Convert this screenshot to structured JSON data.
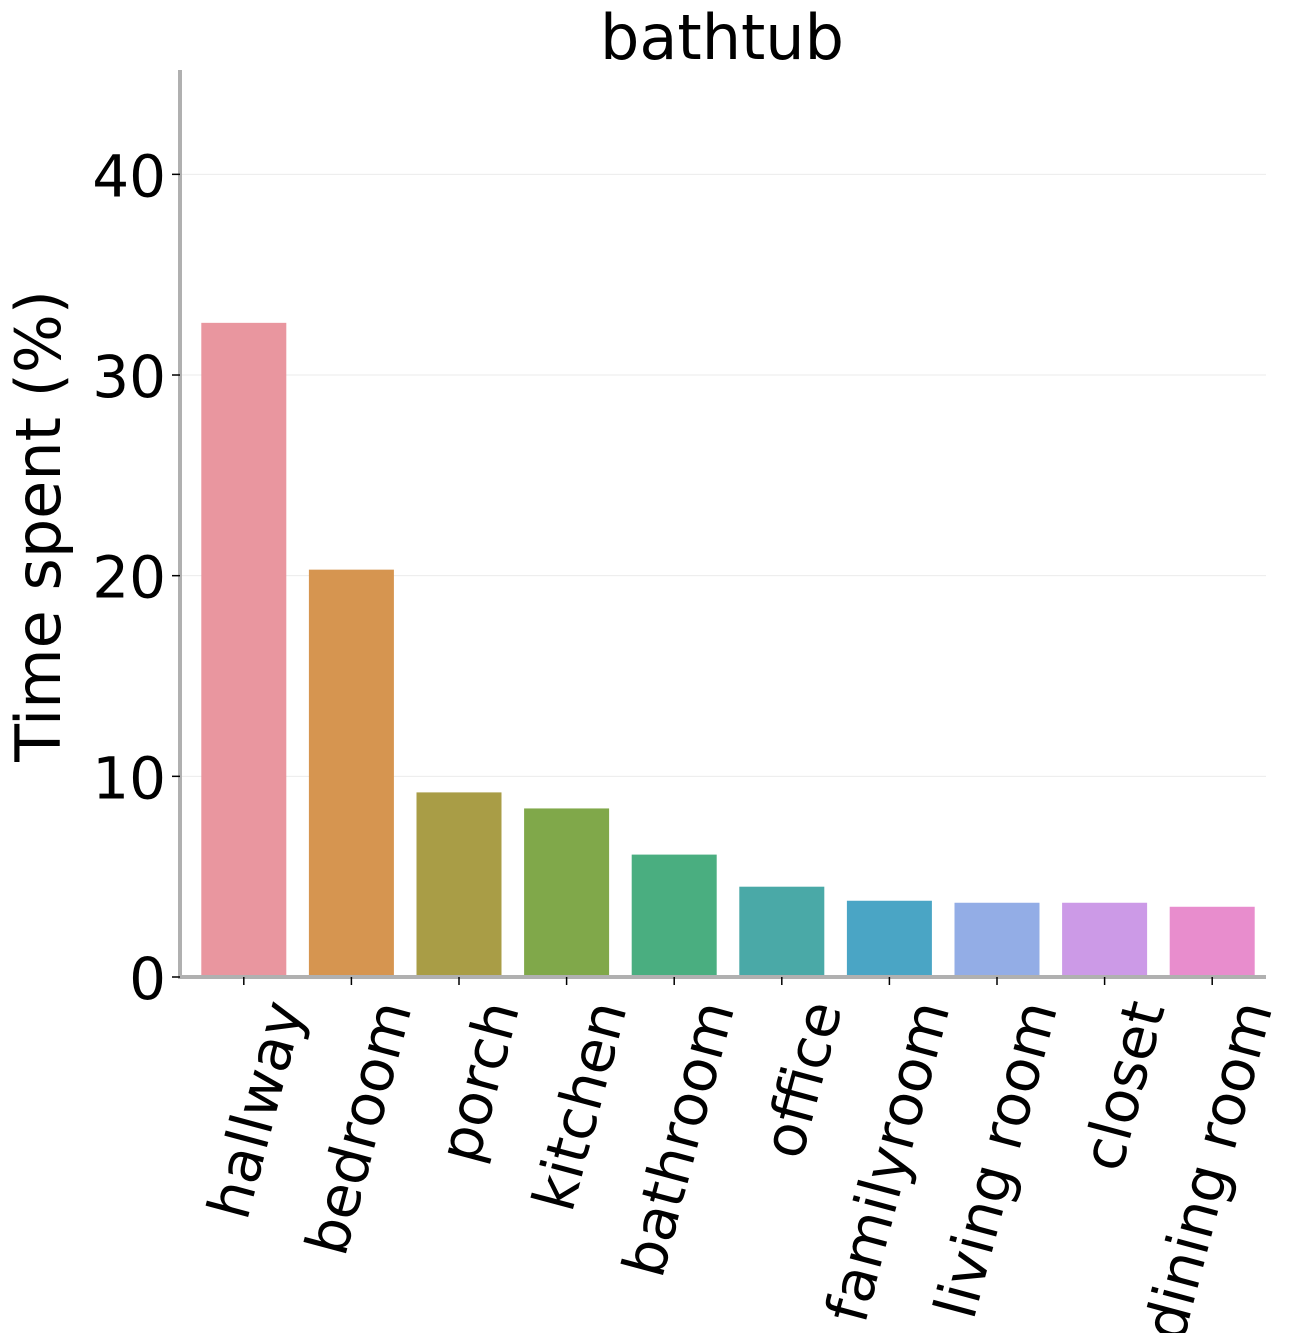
{
  "chart_data": {
    "type": "bar",
    "title": "bathtub",
    "xlabel": "",
    "ylabel": "Time spent (%)",
    "ylim": [
      0,
      45.2
    ],
    "yticks": [
      0,
      10,
      20,
      30,
      40
    ],
    "grid": "horizontal",
    "categories": [
      "hallway",
      "bedroom",
      "porch",
      "kitchen",
      "bathroom",
      "office",
      "familyroom",
      "living room",
      "closet",
      "dining room"
    ],
    "values": [
      32.6,
      20.3,
      9.2,
      8.4,
      6.1,
      4.5,
      3.8,
      3.7,
      3.7,
      3.5
    ],
    "colors": [
      "#e9969f",
      "#d69550",
      "#a99d46",
      "#80a84a",
      "#4aae80",
      "#4aa9a7",
      "#4aa5c5",
      "#93ade6",
      "#cc9ae7",
      "#e88dcd"
    ]
  }
}
